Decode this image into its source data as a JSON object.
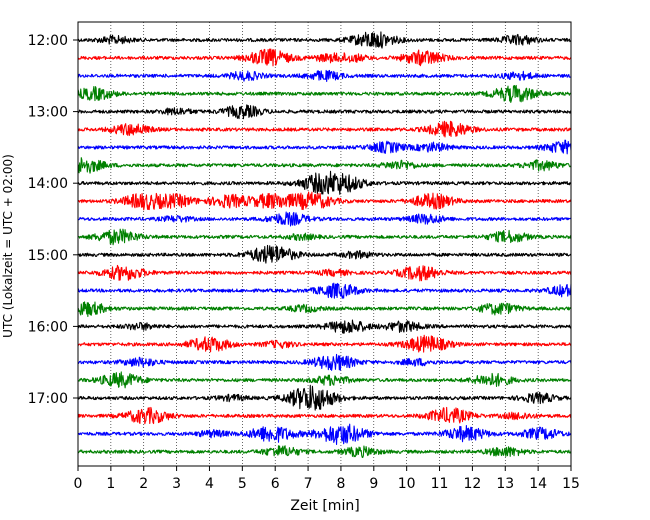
{
  "chart_data": {
    "type": "line",
    "title": "",
    "xlabel": "Zeit  [min]",
    "ylabel": "UTC (Lokalzeit = UTC + 02:00)",
    "xlim": [
      0,
      15
    ],
    "x_ticks": [
      "0",
      "1",
      "2",
      "3",
      "4",
      "5",
      "6",
      "7",
      "8",
      "9",
      "10",
      "11",
      "12",
      "13",
      "14",
      "15"
    ],
    "y_ticks": [
      "12:00",
      "13:00",
      "14:00",
      "15:00",
      "16:00",
      "17:00"
    ],
    "grid": "vertical dotted",
    "trace_colors": [
      "#000000",
      "#ff0000",
      "#0000ff",
      "#008000"
    ],
    "series": [
      {
        "start": "12:00",
        "color": "#000000",
        "events": [
          [
            1.1,
            0.35
          ],
          [
            9.0,
            0.8
          ],
          [
            13.4,
            0.45
          ]
        ]
      },
      {
        "start": "12:15",
        "color": "#ff0000",
        "events": [
          [
            5.8,
            0.8
          ],
          [
            7.6,
            0.3
          ],
          [
            10.5,
            0.7
          ],
          [
            8.3,
            0.35
          ]
        ]
      },
      {
        "start": "12:30",
        "color": "#0000ff",
        "events": [
          [
            5.1,
            0.4
          ],
          [
            7.5,
            0.45
          ],
          [
            13.4,
            0.35
          ]
        ]
      },
      {
        "start": "12:45",
        "color": "#008000",
        "events": [
          [
            0.5,
            0.6
          ],
          [
            13.3,
            0.8
          ]
        ]
      },
      {
        "start": "13:00",
        "color": "#000000",
        "events": [
          [
            5.0,
            0.6
          ],
          [
            3.0,
            0.3
          ]
        ]
      },
      {
        "start": "13:15",
        "color": "#ff0000",
        "events": [
          [
            1.6,
            0.55
          ],
          [
            11.3,
            0.75
          ]
        ]
      },
      {
        "start": "13:30",
        "color": "#0000ff",
        "events": [
          [
            9.4,
            0.5
          ],
          [
            10.8,
            0.4
          ],
          [
            14.8,
            0.6
          ]
        ]
      },
      {
        "start": "13:45",
        "color": "#008000",
        "events": [
          [
            0.1,
            0.8
          ],
          [
            9.8,
            0.4
          ],
          [
            14.1,
            0.45
          ]
        ]
      },
      {
        "start": "14:00",
        "color": "#000000",
        "events": [
          [
            7.3,
            0.7
          ],
          [
            8.0,
            0.85
          ]
        ]
      },
      {
        "start": "14:15",
        "color": "#ff0000",
        "events": [
          [
            2.0,
            0.75
          ],
          [
            3.0,
            0.55
          ],
          [
            4.6,
            0.6
          ],
          [
            5.9,
            0.7
          ],
          [
            7.1,
            0.8
          ],
          [
            10.8,
            0.7
          ]
        ]
      },
      {
        "start": "14:30",
        "color": "#0000ff",
        "events": [
          [
            6.4,
            0.6
          ],
          [
            10.6,
            0.45
          ],
          [
            3.0,
            0.25
          ]
        ]
      },
      {
        "start": "14:45",
        "color": "#008000",
        "events": [
          [
            1.2,
            0.7
          ],
          [
            13.1,
            0.55
          ],
          [
            6.8,
            0.25
          ]
        ]
      },
      {
        "start": "15:00",
        "color": "#000000",
        "events": [
          [
            5.9,
            0.9
          ],
          [
            8.5,
            0.3
          ]
        ]
      },
      {
        "start": "15:15",
        "color": "#ff0000",
        "events": [
          [
            1.4,
            0.7
          ],
          [
            10.4,
            0.7
          ],
          [
            7.8,
            0.25
          ]
        ]
      },
      {
        "start": "15:30",
        "color": "#0000ff",
        "events": [
          [
            7.9,
            0.7
          ],
          [
            14.9,
            0.55
          ]
        ]
      },
      {
        "start": "15:45",
        "color": "#008000",
        "events": [
          [
            0.2,
            0.7
          ],
          [
            12.8,
            0.55
          ],
          [
            6.9,
            0.3
          ]
        ]
      },
      {
        "start": "16:00",
        "color": "#000000",
        "events": [
          [
            8.2,
            0.65
          ],
          [
            9.9,
            0.5
          ],
          [
            1.9,
            0.3
          ]
        ]
      },
      {
        "start": "16:15",
        "color": "#ff0000",
        "events": [
          [
            4.0,
            0.7
          ],
          [
            10.6,
            0.8
          ],
          [
            6.1,
            0.3
          ]
        ]
      },
      {
        "start": "16:30",
        "color": "#0000ff",
        "events": [
          [
            1.9,
            0.4
          ],
          [
            7.8,
            0.75
          ],
          [
            10.3,
            0.3
          ]
        ]
      },
      {
        "start": "16:45",
        "color": "#008000",
        "events": [
          [
            1.3,
            0.7
          ],
          [
            7.7,
            0.45
          ],
          [
            12.6,
            0.6
          ]
        ]
      },
      {
        "start": "17:00",
        "color": "#000000",
        "events": [
          [
            6.9,
            0.7
          ],
          [
            7.3,
            0.75
          ],
          [
            14.0,
            0.45
          ],
          [
            4.7,
            0.25
          ]
        ]
      },
      {
        "start": "17:15",
        "color": "#ff0000",
        "events": [
          [
            2.1,
            0.75
          ],
          [
            11.3,
            0.75
          ],
          [
            13.4,
            0.3
          ]
        ]
      },
      {
        "start": "17:30",
        "color": "#0000ff",
        "events": [
          [
            5.9,
            0.8
          ],
          [
            8.0,
            1.0
          ],
          [
            11.8,
            0.7
          ],
          [
            14.1,
            0.55
          ],
          [
            4.1,
            0.3
          ]
        ]
      },
      {
        "start": "17:45",
        "color": "#008000",
        "events": [
          [
            6.2,
            0.5
          ],
          [
            8.6,
            0.45
          ],
          [
            13.0,
            0.45
          ]
        ]
      }
    ]
  }
}
